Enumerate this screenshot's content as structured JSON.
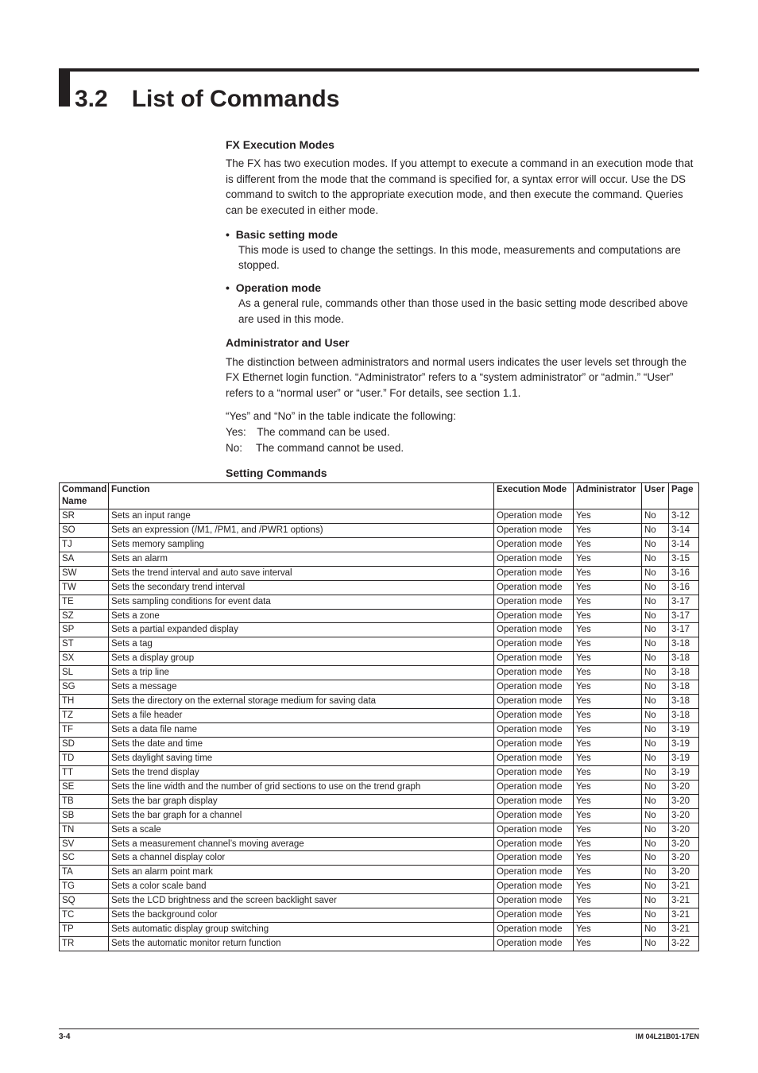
{
  "section": {
    "number": "3.2",
    "title": "List of Commands"
  },
  "fx": {
    "heading": "FX Execution Modes",
    "intro": "The FX has two execution modes. If you attempt to execute a command in an execution mode that is different from the mode that the command is specified for, a syntax error will occur. Use the DS command to switch to the appropriate execution mode, and then execute the command. Queries can be executed in either mode.",
    "basic_title": "Basic setting mode",
    "basic_body": "This mode is used to change the settings. In this mode, measurements and computations are stopped.",
    "op_title": "Operation mode",
    "op_body": "As a general rule, commands other than those used in the basic setting mode described above are used in this mode."
  },
  "admin": {
    "heading": "Administrator and User",
    "p1": "The distinction between administrators and normal users indicates the user levels set through the FX Ethernet login function. “Administrator” refers to a “system administrator” or “admin.” “User” refers to a “normal user” or “user.” For details, see section 1.1.",
    "p2": "“Yes” and “No” in the table indicate the following:",
    "yes": "Yes: The command can be used.",
    "no": "No:  The command cannot be used."
  },
  "table": {
    "title": "Setting Commands",
    "headers": {
      "cmd": "Command Name",
      "func": "Function",
      "exec": "Execution Mode",
      "admin": "Administrator",
      "user": "User",
      "page": "Page"
    },
    "rows": [
      [
        "SR",
        "Sets an input range",
        "Operation mode",
        "Yes",
        "No",
        "3-12"
      ],
      [
        "SO",
        "Sets an expression (/M1, /PM1, and /PWR1 options)",
        "Operation mode",
        "Yes",
        "No",
        "3-14"
      ],
      [
        "TJ",
        "Sets memory sampling",
        "Operation mode",
        "Yes",
        "No",
        "3-14"
      ],
      [
        "SA",
        "Sets an alarm",
        "Operation mode",
        "Yes",
        "No",
        "3-15"
      ],
      [
        "SW",
        "Sets the trend interval and auto save interval",
        "Operation mode",
        "Yes",
        "No",
        "3-16"
      ],
      [
        "TW",
        "Sets the secondary trend interval",
        "Operation mode",
        "Yes",
        "No",
        "3-16"
      ],
      [
        "TE",
        "Sets sampling conditions for event data",
        "Operation mode",
        "Yes",
        "No",
        "3-17"
      ],
      [
        "SZ",
        "Sets a zone",
        "Operation mode",
        "Yes",
        "No",
        "3-17"
      ],
      [
        "SP",
        "Sets a partial expanded display",
        "Operation mode",
        "Yes",
        "No",
        "3-17"
      ],
      [
        "ST",
        "Sets a tag",
        "Operation mode",
        "Yes",
        "No",
        "3-18"
      ],
      [
        "SX",
        "Sets a display group",
        "Operation mode",
        "Yes",
        "No",
        "3-18"
      ],
      [
        "SL",
        "Sets a trip line",
        "Operation mode",
        "Yes",
        "No",
        "3-18"
      ],
      [
        "SG",
        "Sets a message",
        "Operation mode",
        "Yes",
        "No",
        "3-18"
      ],
      [
        "TH",
        "Sets the directory on the external storage medium for saving data",
        "Operation mode",
        "Yes",
        "No",
        "3-18"
      ],
      [
        "TZ",
        "Sets a file header",
        "Operation mode",
        "Yes",
        "No",
        "3-18"
      ],
      [
        "TF",
        "Sets a data file name",
        "Operation mode",
        "Yes",
        "No",
        "3-19"
      ],
      [
        "SD",
        "Sets the date and time",
        "Operation mode",
        "Yes",
        "No",
        "3-19"
      ],
      [
        "TD",
        "Sets daylight saving time",
        "Operation mode",
        "Yes",
        "No",
        "3-19"
      ],
      [
        "TT",
        "Sets the trend display",
        "Operation mode",
        "Yes",
        "No",
        "3-19"
      ],
      [
        "SE",
        "Sets the line width and the number of grid sections to use on the trend graph",
        "Operation mode",
        "Yes",
        "No",
        "3-20"
      ],
      [
        "TB",
        "Sets the bar graph display",
        "Operation mode",
        "Yes",
        "No",
        "3-20"
      ],
      [
        "SB",
        "Sets the bar graph for a channel",
        "Operation mode",
        "Yes",
        "No",
        "3-20"
      ],
      [
        "TN",
        "Sets a scale",
        "Operation mode",
        "Yes",
        "No",
        "3-20"
      ],
      [
        "SV",
        "Sets a measurement channel’s moving average",
        "Operation mode",
        "Yes",
        "No",
        "3-20"
      ],
      [
        "SC",
        "Sets a channel display color",
        "Operation mode",
        "Yes",
        "No",
        "3-20"
      ],
      [
        "TA",
        "Sets an alarm point mark",
        "Operation mode",
        "Yes",
        "No",
        "3-20"
      ],
      [
        "TG",
        "Sets a color scale band",
        "Operation mode",
        "Yes",
        "No",
        "3-21"
      ],
      [
        "SQ",
        "Sets the LCD brightness and the screen backlight saver",
        "Operation mode",
        "Yes",
        "No",
        "3-21"
      ],
      [
        "TC",
        "Sets the background color",
        "Operation mode",
        "Yes",
        "No",
        "3-21"
      ],
      [
        "TP",
        "Sets automatic display group switching",
        "Operation mode",
        "Yes",
        "No",
        "3-21"
      ],
      [
        "TR",
        "Sets the automatic monitor return function",
        "Operation mode",
        "Yes",
        "No",
        "3-22"
      ]
    ]
  },
  "footer": {
    "page": "3-4",
    "doc": "IM 04L21B01-17EN"
  }
}
